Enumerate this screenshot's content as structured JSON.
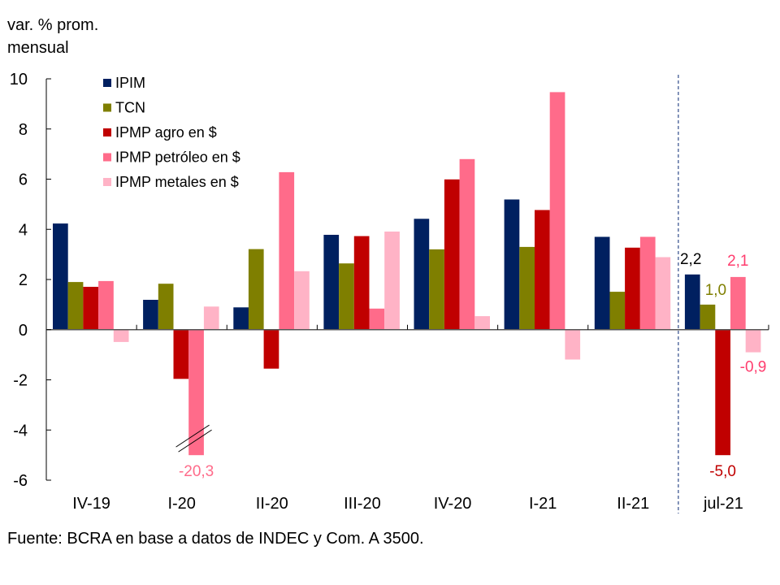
{
  "chart_data": {
    "type": "bar",
    "title": "",
    "ylabel": "var. % prom. mensual",
    "ylabel_lines": [
      "var. % prom.",
      "mensual"
    ],
    "xlabel": "",
    "ylim": [
      -6,
      10
    ],
    "yticks": [
      10,
      8,
      6,
      4,
      2,
      0,
      -2,
      -4,
      -6
    ],
    "grid": false,
    "legend_position": "top-left",
    "categories": [
      "IV-19",
      "I-20",
      "II-20",
      "III-20",
      "IV-20",
      "I-21",
      "II-21",
      "jul-21"
    ],
    "series": [
      {
        "name": "IPIM",
        "color": "#002060",
        "values": [
          4.23,
          1.19,
          0.89,
          3.78,
          4.42,
          5.19,
          3.7,
          2.2
        ]
      },
      {
        "name": "TCN",
        "color": "#7F7F00",
        "values": [
          1.9,
          1.83,
          3.21,
          2.64,
          3.2,
          3.3,
          1.51,
          1.0
        ]
      },
      {
        "name": "IPMP agro en $",
        "color": "#C00000",
        "values": [
          1.71,
          -1.96,
          -1.55,
          3.73,
          5.99,
          4.77,
          3.27,
          -5.0
        ]
      },
      {
        "name": "IPMP petróleo en $",
        "color": "#FF6B8A",
        "values": [
          1.94,
          -20.3,
          6.28,
          0.84,
          6.8,
          9.47,
          3.7,
          2.1
        ]
      },
      {
        "name": "IPMP metales en $",
        "color": "#FFB3C6",
        "values": [
          -0.49,
          0.92,
          2.33,
          3.91,
          0.54,
          -1.19,
          2.89,
          -0.9
        ]
      }
    ],
    "annotations": [
      {
        "category": "I-20",
        "series": "IPMP petróleo en $",
        "text": "-20,3",
        "color": "#FF6B8A",
        "note": "bar truncated at axis minimum with break marks"
      },
      {
        "category": "jul-21",
        "series": "IPIM",
        "text": "2,2",
        "color": "#000000"
      },
      {
        "category": "jul-21",
        "series": "TCN",
        "text": "1,0",
        "color": "#7F7F00"
      },
      {
        "category": "jul-21",
        "series": "IPMP petróleo en $",
        "text": "2,1",
        "color": "#FF3D6E"
      },
      {
        "category": "jul-21",
        "series": "IPMP agro en $",
        "text": "-5,0",
        "color": "#C00000"
      },
      {
        "category": "jul-21",
        "series": "IPMP metales en $",
        "text": "-0,9",
        "color": "#FF3D6E"
      }
    ],
    "separator": {
      "before_category": "jul-21",
      "style": "dashed",
      "color": "#2F4B8A"
    }
  },
  "source": "Fuente: BCRA en base a datos de INDEC y Com. A 3500."
}
